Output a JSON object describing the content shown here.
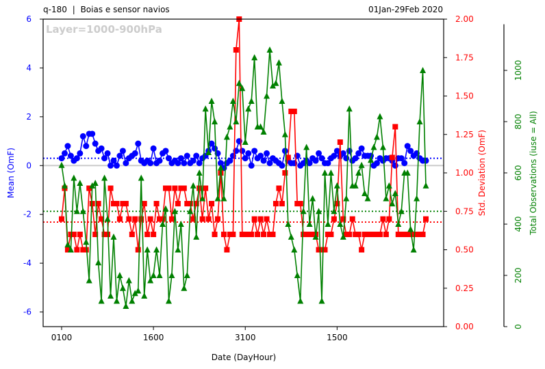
{
  "header": {
    "left_code": "q-180",
    "separator": "|",
    "left_title": "Boias e sensor navios",
    "date_range": "01Jan-29Feb 2020"
  },
  "chart_data": {
    "type": "line",
    "annotation": "Layer=1000-900hPa",
    "xlabel": "Date (DayHour)",
    "x_ticks": [
      "0100",
      "1600",
      "3100",
      "1500"
    ],
    "x_tick_index": [
      0,
      30,
      60,
      90
    ],
    "n_points": 120,
    "axes": {
      "mean": {
        "label": "Mean (OmF)",
        "ylim": [
          -6.6,
          6
        ],
        "ticks": [
          6,
          4,
          2,
          0,
          -2,
          -4,
          -6
        ],
        "color": "#0000ff"
      },
      "std": {
        "label": "Std. Deviation (OmF)",
        "ylim": [
          0,
          2
        ],
        "ticks": [
          "2.00",
          "1.75",
          "1.50",
          "1.25",
          "1.00",
          "0.75",
          "0.50",
          "0.25",
          "0.00"
        ],
        "color": "#ff0000"
      },
      "count": {
        "label": "Total Observations (iuse = All)",
        "ylim": [
          0,
          1200
        ],
        "ticks": [
          0,
          200,
          400,
          600,
          800,
          1000
        ],
        "color": "#008000"
      }
    },
    "series": [
      {
        "name": "Mean (OmF)",
        "axis": "mean",
        "color": "#0000ff",
        "marker": "circle",
        "avg": 0.3,
        "values": [
          0.3,
          0.5,
          0.8,
          0.4,
          0.2,
          0.3,
          0.5,
          1.2,
          0.8,
          1.3,
          1.3,
          0.9,
          0.6,
          0.7,
          0.3,
          0.5,
          0.0,
          0.2,
          0.0,
          0.4,
          0.6,
          0.1,
          0.3,
          0.4,
          0.5,
          0.9,
          0.2,
          0.1,
          0.2,
          0.1,
          0.7,
          0.1,
          0.2,
          0.5,
          0.6,
          0.3,
          0.1,
          0.2,
          0.1,
          0.3,
          0.1,
          0.4,
          0.1,
          0.2,
          0.4,
          0.1,
          0.3,
          0.4,
          0.6,
          0.9,
          0.7,
          0.5,
          0.1,
          -0.1,
          0.1,
          0.2,
          0.4,
          0.6,
          1.0,
          0.6,
          0.3,
          0.5,
          0.0,
          0.6,
          0.3,
          0.4,
          0.2,
          0.5,
          0.1,
          0.3,
          0.2,
          0.1,
          0.0,
          0.6,
          0.2,
          0.1,
          0.1,
          0.4,
          0.0,
          0.1,
          0.2,
          0.1,
          0.3,
          0.2,
          0.5,
          0.3,
          0.1,
          0.1,
          0.3,
          0.4,
          0.6,
          0.4,
          0.5,
          0.3,
          0.6,
          0.2,
          0.3,
          0.5,
          0.7,
          0.4,
          0.4,
          0.4,
          0.0,
          0.1,
          0.3,
          0.2,
          0.3,
          0.3,
          0.2,
          0.0,
          0.3,
          0.3,
          0.1,
          0.8,
          0.6,
          0.4,
          0.5,
          0.3,
          0.2,
          0.2
        ]
      },
      {
        "name": "Std. Deviation (OmF)",
        "axis": "std",
        "color": "#ff0000",
        "marker": "square",
        "avg": 0.68,
        "values": [
          0.7,
          0.9,
          0.5,
          0.6,
          0.6,
          0.5,
          0.6,
          0.5,
          0.5,
          0.9,
          0.8,
          0.6,
          0.8,
          0.7,
          0.6,
          0.6,
          0.9,
          0.8,
          0.8,
          0.7,
          0.8,
          0.8,
          0.7,
          0.6,
          0.7,
          0.5,
          0.7,
          0.8,
          0.6,
          0.7,
          0.6,
          0.8,
          0.7,
          0.7,
          0.9,
          0.9,
          0.7,
          0.9,
          0.8,
          0.9,
          0.9,
          0.8,
          0.8,
          0.7,
          0.8,
          0.9,
          0.7,
          0.9,
          0.7,
          0.8,
          0.6,
          0.7,
          1.0,
          0.6,
          0.5,
          0.6,
          0.6,
          1.8,
          2.0,
          0.6,
          0.6,
          0.6,
          0.6,
          0.7,
          0.6,
          0.7,
          0.6,
          0.7,
          0.6,
          0.6,
          0.8,
          0.9,
          0.8,
          1.0,
          1.1,
          1.4,
          1.4,
          0.8,
          0.8,
          0.6,
          0.6,
          0.6,
          0.6,
          0.6,
          0.5,
          0.5,
          0.5,
          0.6,
          0.6,
          0.7,
          0.8,
          1.2,
          0.7,
          0.6,
          0.6,
          0.7,
          0.6,
          0.6,
          0.5,
          0.6,
          0.6,
          0.6,
          0.6,
          0.6,
          0.6,
          0.7,
          0.6,
          0.7,
          1.1,
          1.3,
          0.6,
          0.6,
          0.6,
          0.6,
          0.6,
          0.6,
          0.6,
          0.6,
          0.6,
          0.7
        ]
      },
      {
        "name": "Total Observations (iuse = All)",
        "axis": "count",
        "color": "#008000",
        "marker": "triangle",
        "avg": 450,
        "values": [
          630,
          550,
          320,
          300,
          580,
          450,
          560,
          450,
          330,
          180,
          550,
          560,
          250,
          100,
          580,
          420,
          120,
          350,
          100,
          200,
          150,
          80,
          180,
          100,
          130,
          140,
          580,
          120,
          300,
          180,
          200,
          300,
          200,
          400,
          460,
          100,
          200,
          450,
          300,
          400,
          150,
          200,
          450,
          550,
          350,
          600,
          500,
          850,
          680,
          880,
          800,
          500,
          620,
          500,
          740,
          780,
          880,
          800,
          950,
          930,
          720,
          850,
          880,
          1050,
          780,
          780,
          760,
          900,
          1080,
          940,
          950,
          1030,
          880,
          750,
          400,
          350,
          300,
          200,
          100,
          450,
          700,
          400,
          500,
          350,
          450,
          100,
          600,
          400,
          600,
          450,
          550,
          400,
          350,
          500,
          850,
          550,
          550,
          600,
          630,
          520,
          500,
          650,
          700,
          740,
          820,
          700,
          500,
          550,
          480,
          520,
          400,
          450,
          600,
          600,
          380,
          300,
          500,
          800,
          1000,
          550
        ]
      }
    ]
  }
}
